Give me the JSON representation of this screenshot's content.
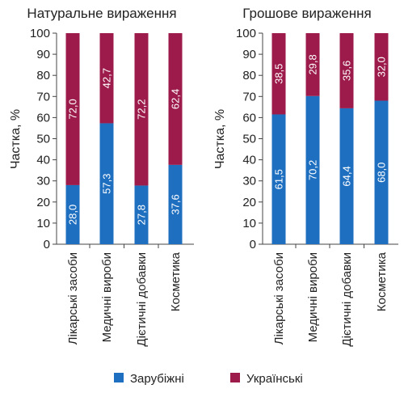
{
  "chart_data": [
    {
      "type": "bar",
      "stacked": true,
      "percent": true,
      "title": "Натуральне вираження",
      "ylabel": "Частка, %",
      "ylim": [
        0,
        100
      ],
      "yticks": [
        0,
        10,
        20,
        30,
        40,
        50,
        60,
        70,
        80,
        90,
        100
      ],
      "categories": [
        "Лікарські засоби",
        "Медичні вироби",
        "Дієтичні добавки",
        "Косметика"
      ],
      "series": [
        {
          "name": "Зарубіжні",
          "values": [
            28.0,
            57.3,
            27.8,
            37.6
          ],
          "labels": [
            "28,0",
            "57,3",
            "27,8",
            "37,6"
          ],
          "color": "#1f6fc0"
        },
        {
          "name": "Українські",
          "values": [
            72.0,
            42.7,
            72.2,
            62.4
          ],
          "labels": [
            "72,0",
            "42,7",
            "72,2",
            "62,4"
          ],
          "color": "#9c1b4a"
        }
      ]
    },
    {
      "type": "bar",
      "stacked": true,
      "percent": true,
      "title": "Грошове вираження",
      "ylabel": "Частка, %",
      "ylim": [
        0,
        100
      ],
      "yticks": [
        0,
        10,
        20,
        30,
        40,
        50,
        60,
        70,
        80,
        90,
        100
      ],
      "categories": [
        "Лікарські засоби",
        "Медичні вироби",
        "Дієтичні добавки",
        "Косметика"
      ],
      "series": [
        {
          "name": "Зарубіжні",
          "values": [
            61.5,
            70.2,
            64.4,
            68.0
          ],
          "labels": [
            "61,5",
            "70,2",
            "64,4",
            "68,0"
          ],
          "color": "#1f6fc0"
        },
        {
          "name": "Українські",
          "values": [
            38.5,
            29.8,
            35.6,
            32.0
          ],
          "labels": [
            "38,5",
            "29,8",
            "35,6",
            "32,0"
          ],
          "color": "#9c1b4a"
        }
      ]
    }
  ],
  "legend": [
    {
      "label": "Зарубіжні",
      "color": "#1f6fc0"
    },
    {
      "label": "Українські",
      "color": "#9c1b4a"
    }
  ]
}
